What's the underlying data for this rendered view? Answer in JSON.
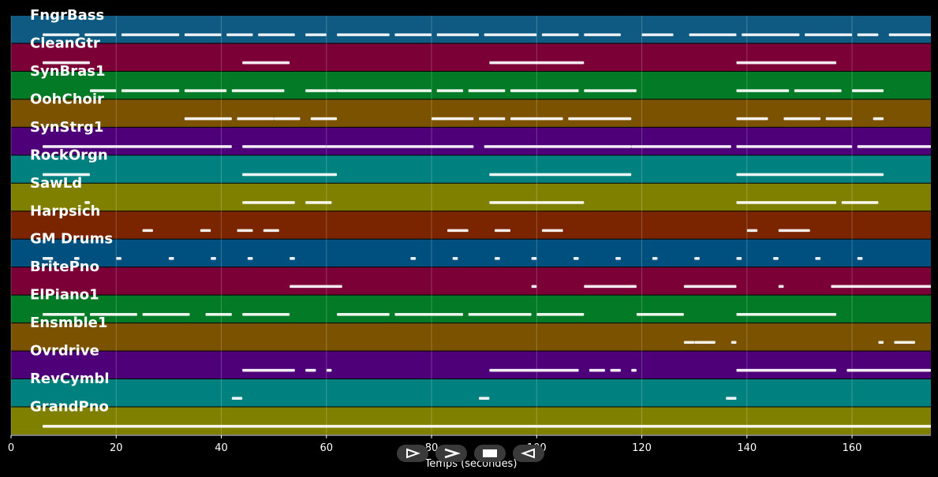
{
  "chart_data": {
    "type": "piano-roll",
    "xlabel": "Temps (secondes)",
    "xlim": [
      0,
      175
    ],
    "xticks": [
      0,
      20,
      40,
      60,
      80,
      100,
      120,
      140,
      160
    ],
    "grid": true,
    "tracks": [
      {
        "name": "FngrBass",
        "color": "#0f5a82",
        "notes": [
          [
            6,
            13
          ],
          [
            14,
            20
          ],
          [
            21,
            32
          ],
          [
            33,
            40
          ],
          [
            41,
            46
          ],
          [
            47,
            54
          ],
          [
            56,
            60
          ],
          [
            62,
            72
          ],
          [
            73,
            80
          ],
          [
            81,
            89
          ],
          [
            90,
            100
          ],
          [
            101,
            108
          ],
          [
            109,
            116
          ],
          [
            120,
            126
          ],
          [
            129,
            138
          ],
          [
            139,
            150
          ],
          [
            151,
            160
          ],
          [
            161,
            165
          ],
          [
            167,
            175
          ]
        ]
      },
      {
        "name": "CleanGtr",
        "color": "#7a0036",
        "notes": [
          [
            6,
            15
          ],
          [
            44,
            53
          ],
          [
            91,
            109
          ],
          [
            138,
            157
          ]
        ]
      },
      {
        "name": "SynBras1",
        "color": "#037a25",
        "notes": [
          [
            15,
            20
          ],
          [
            21,
            32
          ],
          [
            33,
            41
          ],
          [
            42,
            52
          ],
          [
            56,
            62
          ],
          [
            62,
            80
          ],
          [
            81,
            86
          ],
          [
            87,
            94
          ],
          [
            95,
            108
          ],
          [
            109,
            119
          ],
          [
            138,
            148
          ],
          [
            149,
            158
          ],
          [
            160,
            166
          ]
        ]
      },
      {
        "name": "OohChoir",
        "color": "#7a5200",
        "notes": [
          [
            33,
            42
          ],
          [
            43,
            50
          ],
          [
            50,
            55
          ],
          [
            57,
            62
          ],
          [
            80,
            88
          ],
          [
            89,
            94
          ],
          [
            95,
            105
          ],
          [
            106,
            118
          ],
          [
            138,
            144
          ],
          [
            147,
            154
          ],
          [
            155,
            160
          ],
          [
            164,
            166
          ]
        ]
      },
      {
        "name": "SynStrg1",
        "color": "#4e0079",
        "notes": [
          [
            6,
            42
          ],
          [
            44,
            60
          ],
          [
            60,
            88
          ],
          [
            90,
            118
          ],
          [
            118,
            137
          ],
          [
            138,
            160
          ],
          [
            161,
            175
          ]
        ]
      },
      {
        "name": "RockOrgn",
        "color": "#00807e",
        "notes": [
          [
            6,
            15
          ],
          [
            44,
            62
          ],
          [
            91,
            118
          ],
          [
            138,
            166
          ]
        ]
      },
      {
        "name": "SawLd",
        "color": "#808000",
        "notes": [
          [
            14,
            15
          ],
          [
            44,
            54
          ],
          [
            56,
            61
          ],
          [
            91,
            109
          ],
          [
            138,
            157
          ],
          [
            158,
            165
          ]
        ]
      },
      {
        "name": "Harpsich",
        "color": "#7a2500",
        "notes": [
          [
            25,
            27
          ],
          [
            36,
            38
          ],
          [
            43,
            46
          ],
          [
            48,
            51
          ],
          [
            83,
            87
          ],
          [
            92,
            95
          ],
          [
            101,
            105
          ],
          [
            140,
            142
          ],
          [
            146,
            152
          ]
        ]
      },
      {
        "name": "GM Drums",
        "color": "#00507f",
        "notes": [
          [
            6,
            8
          ],
          [
            12,
            13
          ],
          [
            20,
            21
          ],
          [
            30,
            31
          ],
          [
            38,
            39
          ],
          [
            45,
            46
          ],
          [
            53,
            54
          ],
          [
            76,
            77
          ],
          [
            84,
            85
          ],
          [
            92,
            93
          ],
          [
            99,
            100
          ],
          [
            107,
            108
          ],
          [
            115,
            116
          ],
          [
            122,
            123
          ],
          [
            130,
            131
          ],
          [
            138,
            139
          ],
          [
            145,
            146
          ],
          [
            153,
            154
          ],
          [
            161,
            162
          ]
        ]
      },
      {
        "name": "BritePno",
        "color": "#7a0036",
        "notes": [
          [
            53,
            63
          ],
          [
            99,
            100
          ],
          [
            109,
            119
          ],
          [
            128,
            138
          ],
          [
            146,
            147
          ],
          [
            156,
            175
          ]
        ]
      },
      {
        "name": "ElPiano1",
        "color": "#037a25",
        "notes": [
          [
            6,
            14
          ],
          [
            15,
            24
          ],
          [
            25,
            34
          ],
          [
            37,
            42
          ],
          [
            44,
            53
          ],
          [
            62,
            72
          ],
          [
            73,
            86
          ],
          [
            87,
            99
          ],
          [
            100,
            109
          ],
          [
            119,
            128
          ],
          [
            138,
            157
          ]
        ]
      },
      {
        "name": "Ensmble1",
        "color": "#7a5200",
        "notes": [
          [
            128,
            130
          ],
          [
            130,
            134
          ],
          [
            137,
            138
          ],
          [
            165,
            166
          ],
          [
            168,
            172
          ]
        ]
      },
      {
        "name": "Ovrdrive",
        "color": "#4e0079",
        "notes": [
          [
            44,
            54
          ],
          [
            56,
            58
          ],
          [
            60,
            61
          ],
          [
            91,
            108
          ],
          [
            110,
            113
          ],
          [
            114,
            116
          ],
          [
            118,
            119
          ],
          [
            138,
            157
          ],
          [
            159,
            175
          ]
        ]
      },
      {
        "name": "RevCymbl",
        "color": "#00807e",
        "notes": [
          [
            42,
            44
          ],
          [
            89,
            91
          ],
          [
            136,
            138
          ]
        ]
      },
      {
        "name": "GrandPno",
        "color": "#808000",
        "notes": [
          [
            6,
            175
          ]
        ]
      }
    ]
  }
}
